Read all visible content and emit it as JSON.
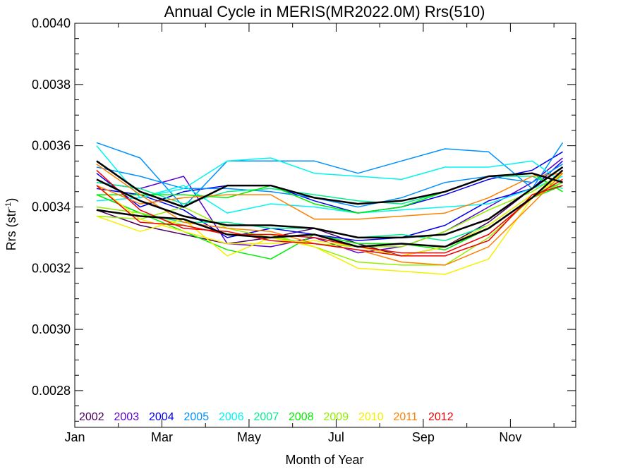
{
  "chart_data": {
    "type": "line",
    "title": "Annual Cycle in MERIS(MR2022.0M) Rrs(510)",
    "xlabel": "Month of Year",
    "ylabel": "Rrs (str",
    "ylabel_sup": "-1",
    "ylabel_close": ")",
    "xlim": [
      1,
      12.5
    ],
    "ylim": [
      0.00268,
      0.004
    ],
    "x_ticks": [
      {
        "x": 1,
        "label": "Jan"
      },
      {
        "x": 3,
        "label": "Mar"
      },
      {
        "x": 5,
        "label": "May"
      },
      {
        "x": 7,
        "label": "Jul"
      },
      {
        "x": 9,
        "label": "Sep"
      },
      {
        "x": 11,
        "label": "Nov"
      }
    ],
    "y_ticks": [
      {
        "y": 0.0028,
        "label": "0.0028"
      },
      {
        "y": 0.003,
        "label": "0.0030"
      },
      {
        "y": 0.0032,
        "label": "0.0032"
      },
      {
        "y": 0.0034,
        "label": "0.0034"
      },
      {
        "y": 0.0036,
        "label": "0.0036"
      },
      {
        "y": 0.0038,
        "label": "0.0038"
      },
      {
        "y": 0.004,
        "label": "0.0040"
      }
    ],
    "grid": false,
    "legend_position": "bottom-left",
    "legend": [
      {
        "name": "2002",
        "color": "#4b0060"
      },
      {
        "name": "2003",
        "color": "#5a00d0"
      },
      {
        "name": "2004",
        "color": "#0000f0"
      },
      {
        "name": "2005",
        "color": "#0090ff"
      },
      {
        "name": "2006",
        "color": "#00f5f0"
      },
      {
        "name": "2007",
        "color": "#00f090"
      },
      {
        "name": "2008",
        "color": "#00f000"
      },
      {
        "name": "2009",
        "color": "#90f000"
      },
      {
        "name": "2010",
        "color": "#f5f000"
      },
      {
        "name": "2011",
        "color": "#ff8000"
      },
      {
        "name": "2012",
        "color": "#f00000"
      }
    ],
    "x": [
      1.5,
      2.5,
      3.5,
      4.5,
      5.5,
      6.5,
      7.5,
      8.5,
      9.5,
      10.5,
      11.5,
      12.2
    ],
    "series": [
      {
        "color": "#4b0060",
        "width": 1.5,
        "values": [
          0.00339,
          0.00334,
          0.00331,
          0.00328,
          0.0033,
          0.00333,
          0.00328,
          0.00324,
          0.00327,
          0.00335,
          0.00346,
          0.00353
        ]
      },
      {
        "color": "#5a00d0",
        "width": 1.5,
        "values": [
          0.00348,
          0.00346,
          0.0035,
          0.00328,
          0.00327,
          0.0033,
          0.00325,
          0.00327,
          0.00332,
          0.0034,
          0.00348,
          0.00356
        ]
      },
      {
        "color": "#0000f0",
        "width": 1.5,
        "values": [
          0.00351,
          0.0034,
          0.00345,
          0.00347,
          0.00347,
          0.00342,
          0.00338,
          0.0034,
          0.00344,
          0.00349,
          0.00352,
          0.00358
        ]
      },
      {
        "color": "#0000f0",
        "width": 1.5,
        "values": [
          0.00346,
          0.00344,
          0.00339,
          0.0033,
          0.00333,
          0.00331,
          0.00329,
          0.0033,
          0.00334,
          0.00342,
          0.00346,
          0.00355
        ]
      },
      {
        "color": "#0090ff",
        "width": 1.5,
        "values": [
          0.00361,
          0.00356,
          0.0034,
          0.00355,
          0.00355,
          0.00355,
          0.00351,
          0.00355,
          0.00359,
          0.00358,
          0.00346,
          0.00361
        ]
      },
      {
        "color": "#0090ff",
        "width": 1.5,
        "values": [
          0.00353,
          0.0035,
          0.00346,
          0.00346,
          0.00345,
          0.00343,
          0.0034,
          0.00343,
          0.00348,
          0.0035,
          0.00348,
          0.00354
        ]
      },
      {
        "color": "#00f5f0",
        "width": 1.5,
        "values": [
          0.0036,
          0.00343,
          0.00346,
          0.00355,
          0.00356,
          0.00351,
          0.0035,
          0.00349,
          0.00353,
          0.00353,
          0.00355,
          0.00348
        ]
      },
      {
        "color": "#00f5f0",
        "width": 1.5,
        "values": [
          0.00342,
          0.00343,
          0.00347,
          0.00338,
          0.00341,
          0.0034,
          0.00338,
          0.00339,
          0.0034,
          0.00341,
          0.00346,
          0.0035
        ]
      },
      {
        "color": "#00f090",
        "width": 1.5,
        "values": [
          0.00344,
          0.00338,
          0.00335,
          0.00335,
          0.00333,
          0.00333,
          0.0033,
          0.00331,
          0.00329,
          0.00334,
          0.00344,
          0.00348
        ]
      },
      {
        "color": "#00f090",
        "width": 1.5,
        "values": [
          0.00348,
          0.00346,
          0.00341,
          0.00345,
          0.00346,
          0.00344,
          0.00342,
          0.00341,
          0.00345,
          0.0035,
          0.0035,
          0.00346
        ]
      },
      {
        "color": "#00f000",
        "width": 1.5,
        "values": [
          0.00344,
          0.00338,
          0.00332,
          0.00326,
          0.00323,
          0.00331,
          0.00328,
          0.00328,
          0.00326,
          0.00333,
          0.00343,
          0.00347
        ]
      },
      {
        "color": "#00f000",
        "width": 1.5,
        "values": [
          0.00344,
          0.00344,
          0.00344,
          0.00343,
          0.00347,
          0.00341,
          0.00338,
          0.0034,
          0.00345,
          0.0035,
          0.00351,
          0.00345
        ]
      },
      {
        "color": "#90f000",
        "width": 1.5,
        "values": [
          0.0034,
          0.00338,
          0.00334,
          0.00331,
          0.00331,
          0.00327,
          0.00322,
          0.00321,
          0.00321,
          0.0033,
          0.00343,
          0.00348
        ]
      },
      {
        "color": "#90f000",
        "width": 1.5,
        "values": [
          0.00337,
          0.00336,
          0.0034,
          0.00333,
          0.0033,
          0.00328,
          0.00327,
          0.00327,
          0.00332,
          0.00339,
          0.00345,
          0.00351
        ]
      },
      {
        "color": "#f5f000",
        "width": 1.5,
        "values": [
          0.00337,
          0.00332,
          0.00336,
          0.00324,
          0.0033,
          0.00327,
          0.0032,
          0.00319,
          0.00318,
          0.00323,
          0.00343,
          0.00351
        ]
      },
      {
        "color": "#f5f000",
        "width": 1.5,
        "values": [
          0.00347,
          0.00336,
          0.00332,
          0.00328,
          0.00328,
          0.00329,
          0.00327,
          0.00324,
          0.00327,
          0.00334,
          0.00344,
          0.00349
        ]
      },
      {
        "color": "#ff8000",
        "width": 1.5,
        "values": [
          0.00354,
          0.00344,
          0.00335,
          0.00333,
          0.00332,
          0.00328,
          0.00326,
          0.00322,
          0.00321,
          0.00327,
          0.00341,
          0.00351
        ]
      },
      {
        "color": "#ff8000",
        "width": 1.5,
        "values": [
          0.00347,
          0.00341,
          0.00343,
          0.00344,
          0.00344,
          0.00336,
          0.00336,
          0.00337,
          0.00338,
          0.00343,
          0.0035,
          0.00351
        ]
      },
      {
        "color": "#f00000",
        "width": 1.5,
        "values": [
          0.00352,
          0.00339,
          0.00333,
          0.00332,
          0.00329,
          0.00328,
          0.00326,
          0.00324,
          0.00324,
          0.00329,
          0.00344,
          0.00347
        ]
      },
      {
        "color": "#f00000",
        "width": 1.5,
        "values": [
          0.00347,
          0.00335,
          0.00334,
          0.00331,
          0.00331,
          0.0033,
          0.00327,
          0.00325,
          0.00325,
          0.00331,
          0.00343,
          0.00349
        ]
      },
      {
        "color": "#000000",
        "width": 2.5,
        "values": [
          0.00355,
          0.00345,
          0.0034,
          0.00347,
          0.00347,
          0.00343,
          0.00341,
          0.00342,
          0.00345,
          0.0035,
          0.00351,
          0.00348
        ]
      },
      {
        "color": "#000000",
        "width": 2.5,
        "values": [
          0.00349,
          0.00342,
          0.00337,
          0.00334,
          0.00334,
          0.00333,
          0.0033,
          0.0033,
          0.00331,
          0.00336,
          0.00346,
          0.00353
        ]
      },
      {
        "color": "#000000",
        "width": 2.5,
        "values": [
          0.00339,
          0.00337,
          0.00336,
          0.00331,
          0.0033,
          0.00331,
          0.00327,
          0.00328,
          0.00327,
          0.00333,
          0.00343,
          0.00352
        ]
      }
    ]
  }
}
